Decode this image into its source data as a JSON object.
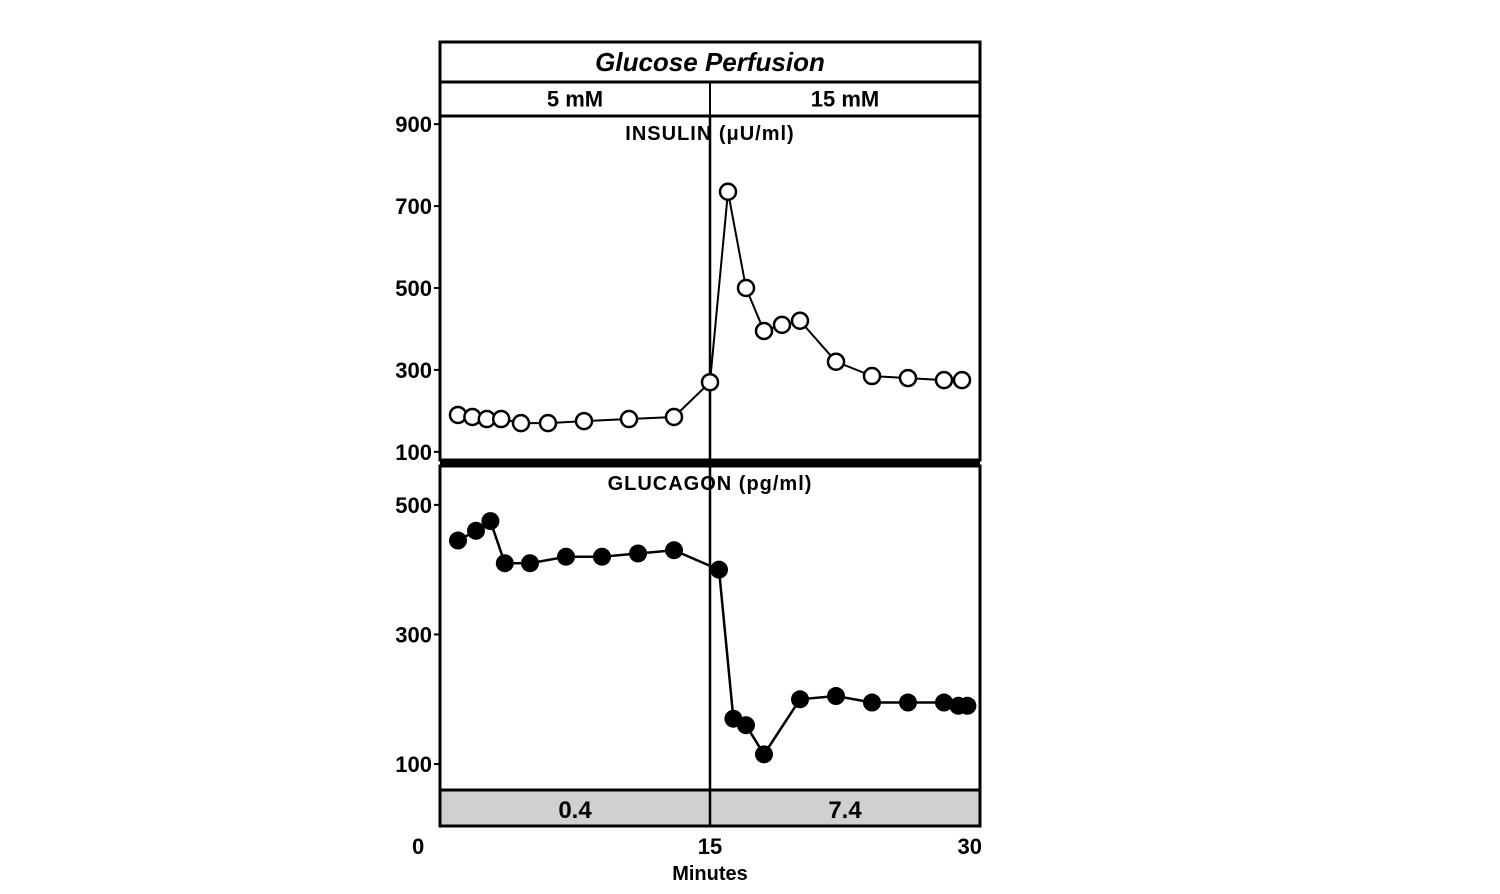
{
  "figure": {
    "background_color": "#ffffff",
    "border_color": "#000000",
    "border_width": 3,
    "divider_width": 6,
    "panel_inner_line_width": 2,
    "vertical_divider_width": 2.5,
    "header": {
      "title": "Glucose Perfusion",
      "title_fontsize": 26,
      "left_label": "5 mM",
      "right_label": "15 mM",
      "sub_fontsize": 22,
      "text_color": "#000000",
      "fill": "#ffffff"
    },
    "x_axis": {
      "label": "Minutes",
      "label_fontsize": 20,
      "xlim": [
        0,
        30
      ],
      "ticks": [
        0,
        15,
        30
      ],
      "tick_fontsize": 22
    },
    "footer_ratio": {
      "fill": "#d0d0d0",
      "left_value": "0.4",
      "right_value": "7.4",
      "fontsize": 24,
      "text_color": "#000000"
    },
    "panels": [
      {
        "name": "insulin",
        "title": "INSULIN  (μU/ml)",
        "title_fontsize": 20,
        "ylim": [
          80,
          920
        ],
        "yticks": [
          100,
          300,
          500,
          700,
          900
        ],
        "ytick_fontsize": 22,
        "marker": {
          "shape": "circle",
          "radius": 8,
          "fill": "#ffffff",
          "stroke": "#000000",
          "stroke_width": 2.5
        },
        "line": {
          "color": "#000000",
          "width": 2
        },
        "data": {
          "x": [
            1.0,
            1.8,
            2.6,
            3.4,
            4.5,
            6.0,
            8.0,
            10.5,
            13.0,
            15.0,
            16.0,
            17.0,
            18.0,
            19.0,
            20.0,
            22.0,
            24.0,
            26.0,
            28.0,
            29.0
          ],
          "y": [
            190,
            185,
            180,
            180,
            170,
            170,
            175,
            180,
            185,
            270,
            735,
            500,
            395,
            410,
            420,
            320,
            285,
            280,
            275,
            275
          ]
        }
      },
      {
        "name": "glucagon",
        "title": "GLUCAGON  (pg/ml)",
        "title_fontsize": 20,
        "ylim": [
          60,
          560
        ],
        "yticks": [
          100,
          300,
          500
        ],
        "ytick_fontsize": 22,
        "marker": {
          "shape": "circle",
          "radius": 9,
          "fill": "#000000",
          "stroke": "#000000",
          "stroke_width": 0
        },
        "line": {
          "color": "#000000",
          "width": 2.5
        },
        "data": {
          "x": [
            1.0,
            2.0,
            2.8,
            3.6,
            5.0,
            7.0,
            9.0,
            11.0,
            13.0,
            15.5,
            16.3,
            17.0,
            18.0,
            20.0,
            22.0,
            24.0,
            26.0,
            28.0,
            28.8,
            29.3
          ],
          "y": [
            445,
            460,
            475,
            410,
            410,
            420,
            420,
            425,
            430,
            400,
            170,
            160,
            115,
            200,
            205,
            195,
            195,
            195,
            190,
            190
          ]
        }
      }
    ]
  }
}
